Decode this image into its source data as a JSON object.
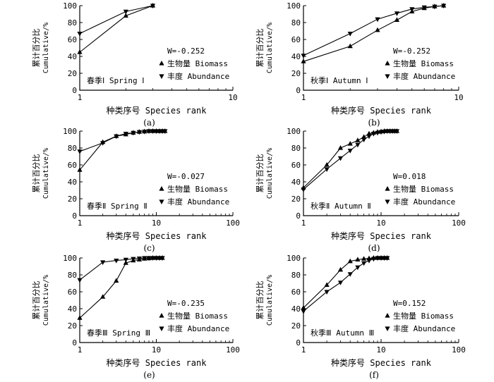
{
  "chart_data": [
    {
      "id": "a",
      "type": "line",
      "caption": "(a)",
      "xscale": "log",
      "xlim": [
        1,
        10
      ],
      "xticks": [
        "1",
        "10"
      ],
      "ylim": [
        0,
        100
      ],
      "yticks": [
        "0",
        "20",
        "40",
        "60",
        "80",
        "100"
      ],
      "ylabel_cn": "累计百分比",
      "ylabel_en": "Cumulative/%",
      "xlabel": "种类序号 Species rank",
      "season": "春季Ⅰ Spring Ⅰ",
      "w_label": "W=-0.252",
      "legend": [
        "生物量 Biomass",
        "丰度 Abundance"
      ],
      "series": [
        {
          "name": "生物量 Biomass",
          "marker": "triangle-up",
          "x": [
            1,
            2,
            3
          ],
          "y": [
            45,
            88,
            100
          ]
        },
        {
          "name": "丰度 Abundance",
          "marker": "triangle-down",
          "x": [
            1,
            2,
            3
          ],
          "y": [
            67,
            93,
            100
          ]
        }
      ]
    },
    {
      "id": "b",
      "type": "line",
      "caption": "(b)",
      "xscale": "log",
      "xlim": [
        1,
        10
      ],
      "xticks": [
        "1",
        "10"
      ],
      "ylim": [
        0,
        100
      ],
      "yticks": [
        "0",
        "20",
        "40",
        "60",
        "80",
        "100"
      ],
      "ylabel_cn": "累计百分比",
      "ylabel_en": "Cumulative/%",
      "xlabel": "种类序号 Species rank",
      "season": "秋季Ⅰ Autumn Ⅰ",
      "w_label": "W=-0.252",
      "legend": [
        "生物量 Biomass",
        "丰度 Abundance"
      ],
      "series": [
        {
          "name": "生物量 Biomass",
          "marker": "triangle-up",
          "x": [
            1,
            2,
            3,
            4,
            5,
            6,
            7,
            8
          ],
          "y": [
            34,
            52,
            71,
            83,
            93,
            97,
            99,
            100
          ]
        },
        {
          "name": "丰度 Abundance",
          "marker": "triangle-down",
          "x": [
            1,
            2,
            3,
            4,
            5,
            6,
            7,
            8
          ],
          "y": [
            41,
            67,
            84,
            91,
            96,
            98,
            99,
            100
          ]
        }
      ]
    },
    {
      "id": "c",
      "type": "line",
      "caption": "(c)",
      "xscale": "log",
      "xlim": [
        1,
        100
      ],
      "xticks": [
        "1",
        "10",
        "100"
      ],
      "ylim": [
        0,
        100
      ],
      "yticks": [
        "0",
        "20",
        "40",
        "60",
        "80",
        "100"
      ],
      "ylabel_cn": "累计百分比",
      "ylabel_en": "Cumulative/%",
      "xlabel": "种类序号 Species rank",
      "season": "春季Ⅱ Spring Ⅱ",
      "w_label": "W=-0.027",
      "legend": [
        "生物量 Biomass",
        "丰度 Abundance"
      ],
      "series": [
        {
          "name": "生物量 Biomass",
          "marker": "triangle-up",
          "x": [
            1,
            2,
            3,
            4,
            5,
            6,
            7,
            8,
            9,
            10,
            11,
            12,
            13
          ],
          "y": [
            54,
            87,
            94,
            96,
            98,
            99,
            99.5,
            100,
            100,
            100,
            100,
            100,
            100
          ]
        },
        {
          "name": "丰度 Abundance",
          "marker": "triangle-down",
          "x": [
            1,
            2,
            3,
            4,
            5,
            6,
            7,
            8,
            9,
            10,
            11,
            12,
            13
          ],
          "y": [
            76,
            86,
            94,
            97,
            98,
            99,
            99.5,
            100,
            100,
            100,
            100,
            100,
            100
          ]
        }
      ]
    },
    {
      "id": "d",
      "type": "line",
      "caption": "(d)",
      "xscale": "log",
      "xlim": [
        1,
        100
      ],
      "xticks": [
        "1",
        "10",
        "100"
      ],
      "ylim": [
        0,
        100
      ],
      "yticks": [
        "0",
        "20",
        "40",
        "60",
        "80",
        "100"
      ],
      "ylabel_cn": "累计百分比",
      "ylabel_en": "Cumulative/%",
      "xlabel": "种类序号 Species rank",
      "season": "秋季Ⅱ Autumn Ⅱ",
      "w_label": "W=0.018",
      "legend": [
        "生物量 Biomass",
        "丰度 Abundance"
      ],
      "series": [
        {
          "name": "生物量 Biomass",
          "marker": "triangle-up",
          "x": [
            1,
            2,
            3,
            4,
            5,
            6,
            7,
            8,
            9,
            10,
            11,
            12,
            13,
            14,
            15,
            16
          ],
          "y": [
            33,
            60,
            80,
            85,
            89,
            93,
            97,
            98,
            99,
            99.5,
            100,
            100,
            100,
            100,
            100,
            100
          ]
        },
        {
          "name": "丰度 Abundance",
          "marker": "triangle-down",
          "x": [
            1,
            2,
            3,
            4,
            5,
            6,
            7,
            8,
            9,
            10,
            11,
            12,
            13,
            14,
            15,
            16
          ],
          "y": [
            31,
            55,
            68,
            77,
            84,
            90,
            94,
            97,
            98,
            99,
            99.5,
            100,
            100,
            100,
            100,
            100
          ]
        }
      ]
    },
    {
      "id": "e",
      "type": "line",
      "caption": "(e)",
      "xscale": "log",
      "xlim": [
        1,
        100
      ],
      "xticks": [
        "1",
        "10",
        "100"
      ],
      "ylim": [
        0,
        100
      ],
      "yticks": [
        "0",
        "20",
        "40",
        "60",
        "80",
        "100"
      ],
      "ylabel_cn": "累计百分比",
      "ylabel_en": "Cumulative/%",
      "xlabel": "种类序号 Species rank",
      "season": "春季Ⅲ Spring Ⅲ",
      "w_label": "W=-0.235",
      "legend": [
        "生物量 Biomass",
        "丰度 Abundance"
      ],
      "series": [
        {
          "name": "生物量 Biomass",
          "marker": "triangle-up",
          "x": [
            1,
            2,
            3,
            4,
            5,
            6,
            7,
            8,
            9,
            10,
            11,
            12
          ],
          "y": [
            29,
            54,
            73,
            94,
            97,
            98,
            99,
            99.5,
            100,
            100,
            100,
            100
          ]
        },
        {
          "name": "丰度 Abundance",
          "marker": "triangle-down",
          "x": [
            1,
            2,
            3,
            4,
            5,
            6,
            7,
            8,
            9,
            10,
            11,
            12
          ],
          "y": [
            74,
            95,
            97,
            98,
            99,
            99.5,
            100,
            100,
            100,
            100,
            100,
            100
          ]
        }
      ]
    },
    {
      "id": "f",
      "type": "line",
      "caption": "(f)",
      "xscale": "log",
      "xlim": [
        1,
        100
      ],
      "xticks": [
        "1",
        "10",
        "100"
      ],
      "ylim": [
        0,
        100
      ],
      "yticks": [
        "0",
        "20",
        "40",
        "60",
        "80",
        "100"
      ],
      "ylabel_cn": "累计百分比",
      "ylabel_en": "Cumulative/%",
      "xlabel": "种类序号 Species rank",
      "season": "秋季Ⅲ Autumn Ⅲ",
      "w_label": "W=0.152",
      "legend": [
        "生物量 Biomass",
        "丰度 Abundance"
      ],
      "series": [
        {
          "name": "生物量 Biomass",
          "marker": "triangle-up",
          "x": [
            1,
            2,
            3,
            4,
            5,
            6,
            7,
            8,
            9,
            10,
            11,
            12
          ],
          "y": [
            41,
            68,
            86,
            96,
            98,
            99,
            99.5,
            100,
            100,
            100,
            100,
            100
          ]
        },
        {
          "name": "丰度 Abundance",
          "marker": "triangle-down",
          "x": [
            1,
            2,
            3,
            4,
            5,
            6,
            7,
            8,
            9,
            10,
            11,
            12
          ],
          "y": [
            37,
            60,
            71,
            81,
            89,
            94,
            97,
            99,
            100,
            100,
            100,
            100
          ]
        }
      ]
    }
  ]
}
